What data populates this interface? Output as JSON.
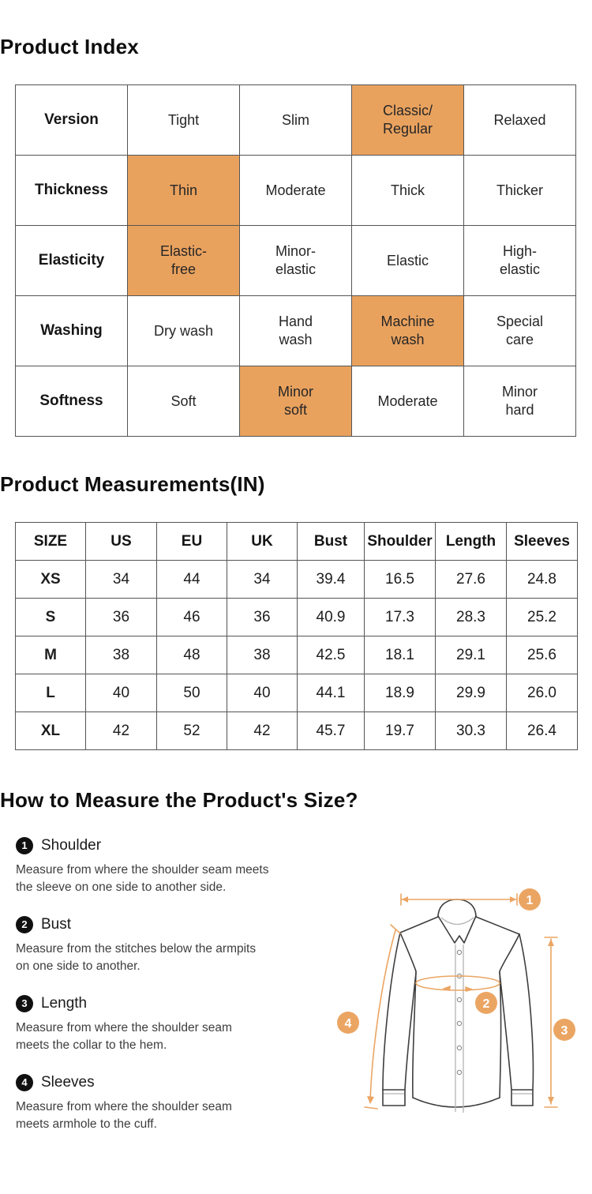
{
  "sections": {
    "product_index_title": "Product Index",
    "measurements_title": "Product Measurements(IN)",
    "how_to_title": "How to Measure the Product's Size?"
  },
  "colors": {
    "highlight": "#E9A25E",
    "diagram_accent": "#EBA563",
    "table_border": "#555555"
  },
  "product_index": {
    "rows": [
      {
        "label": "Version",
        "cells": [
          {
            "text": "Tight",
            "hl": false
          },
          {
            "text": "Slim",
            "hl": false
          },
          {
            "text": "Classic/\nRegular",
            "hl": true
          },
          {
            "text": "Relaxed",
            "hl": false
          }
        ]
      },
      {
        "label": "Thickness",
        "cells": [
          {
            "text": "Thin",
            "hl": true
          },
          {
            "text": "Moderate",
            "hl": false
          },
          {
            "text": "Thick",
            "hl": false
          },
          {
            "text": "Thicker",
            "hl": false
          }
        ]
      },
      {
        "label": "Elasticity",
        "cells": [
          {
            "text": "Elastic-\nfree",
            "hl": true
          },
          {
            "text": "Minor-\nelastic",
            "hl": false
          },
          {
            "text": "Elastic",
            "hl": false
          },
          {
            "text": "High-\nelastic",
            "hl": false
          }
        ]
      },
      {
        "label": "Washing",
        "cells": [
          {
            "text": "Dry wash",
            "hl": false
          },
          {
            "text": "Hand\nwash",
            "hl": false
          },
          {
            "text": "Machine\nwash",
            "hl": true
          },
          {
            "text": "Special\ncare",
            "hl": false
          }
        ]
      },
      {
        "label": "Softness",
        "cells": [
          {
            "text": "Soft",
            "hl": false
          },
          {
            "text": "Minor\nsoft",
            "hl": true
          },
          {
            "text": "Moderate",
            "hl": false
          },
          {
            "text": "Minor\nhard",
            "hl": false
          }
        ]
      }
    ]
  },
  "measurements": {
    "headers": [
      "SIZE",
      "US",
      "EU",
      "UK",
      "Bust",
      "Shoulder",
      "Length",
      "Sleeves"
    ],
    "rows": [
      [
        "XS",
        "34",
        "44",
        "34",
        "39.4",
        "16.5",
        "27.6",
        "24.8"
      ],
      [
        "S",
        "36",
        "46",
        "36",
        "40.9",
        "17.3",
        "28.3",
        "25.2"
      ],
      [
        "M",
        "38",
        "48",
        "38",
        "42.5",
        "18.1",
        "29.1",
        "25.6"
      ],
      [
        "L",
        "40",
        "50",
        "40",
        "44.1",
        "18.9",
        "29.9",
        "26.0"
      ],
      [
        "XL",
        "42",
        "52",
        "42",
        "45.7",
        "19.7",
        "30.3",
        "26.4"
      ]
    ]
  },
  "how_to": {
    "items": [
      {
        "num": "1",
        "label": "Shoulder",
        "desc": "Measure from where the shoulder seam meets\nthe sleeve on one side to another side."
      },
      {
        "num": "2",
        "label": "Bust",
        "desc": "Measure from the stitches below the armpits\non one side to another."
      },
      {
        "num": "3",
        "label": "Length",
        "desc": "Measure from where the shoulder seam\nmeets the collar to the hem."
      },
      {
        "num": "4",
        "label": "Sleeves",
        "desc": "Measure from where the shoulder seam\nmeets armhole to the cuff."
      }
    ]
  },
  "diagram": {
    "badges": [
      "1",
      "2",
      "3",
      "4"
    ]
  }
}
